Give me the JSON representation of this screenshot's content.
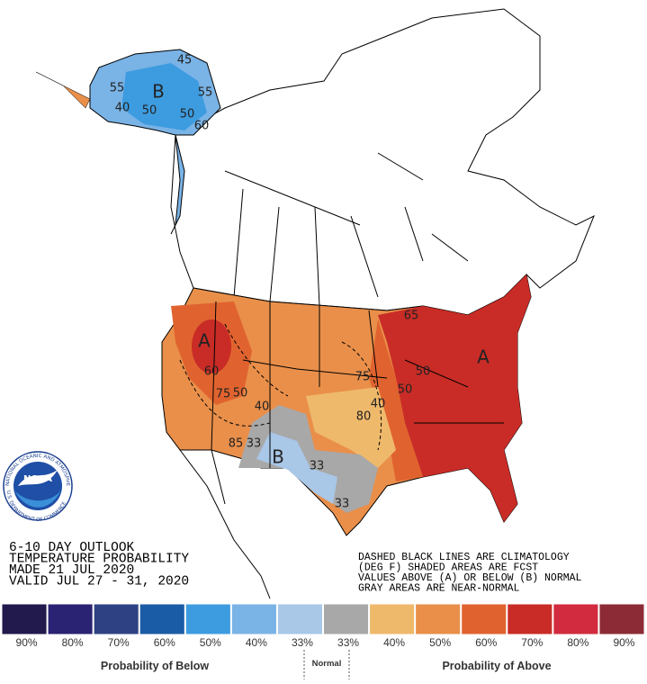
{
  "header": {
    "lines": [
      "6-10 DAY OUTLOOK",
      "TEMPERATURE PROBABILITY",
      "MADE  21 JUL 2020",
      "VALID  JUL 27 - 31, 2020"
    ]
  },
  "note": {
    "lines": [
      "DASHED BLACK LINES ARE CLIMATOLOGY",
      "(DEG F) SHADED AREAS ARE FCST",
      "VALUES ABOVE (A) OR BELOW (B) NORMAL",
      "GRAY AREAS ARE NEAR-NORMAL"
    ]
  },
  "logo": {
    "name": "NOAA",
    "ring_top": "NATIONAL OCEANIC AND ATMOSPHERIC ADMINISTRATION",
    "ring_bottom": "U.S. DEPARTMENT OF COMMERCE"
  },
  "map_labels": [
    "A",
    "A",
    "B",
    "B",
    "50",
    "50",
    "40",
    "60",
    "50",
    "40",
    "33",
    "85",
    "40",
    "50",
    "50",
    "33",
    "33",
    "75",
    "80",
    "65",
    "75",
    "55",
    "60",
    "55",
    "45"
  ],
  "legend": {
    "labels": [
      "90%",
      "80%",
      "70%",
      "60%",
      "50%",
      "40%",
      "33%",
      "33%",
      "40%",
      "50%",
      "60%",
      "70%",
      "80%",
      "90%"
    ],
    "colors": [
      "#22194c",
      "#2a2272",
      "#2e4283",
      "#1b5ca6",
      "#3d9ce0",
      "#7ab3e6",
      "#a9c7e7",
      "#a8a8a8",
      "#efb96b",
      "#e98f4a",
      "#e0632f",
      "#c92c26",
      "#d22a3e",
      "#8c2b36"
    ],
    "below": "Probability of Below",
    "normal": "Normal",
    "above": "Probability of Above"
  }
}
